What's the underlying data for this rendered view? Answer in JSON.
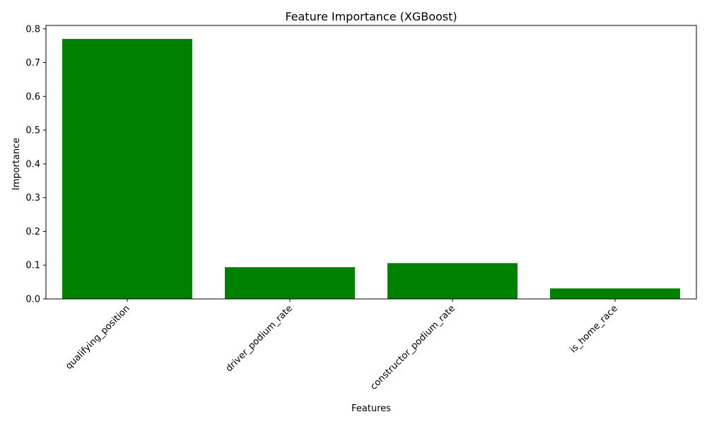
{
  "chart_data": {
    "type": "bar",
    "title": "Feature Importance (XGBoost)",
    "xlabel": "Features",
    "ylabel": "Importance",
    "categories": [
      "qualifying_position",
      "driver_podium_rate",
      "constructor_podium_rate",
      "is_home_race"
    ],
    "values": [
      0.77,
      0.094,
      0.106,
      0.031
    ],
    "ylim": [
      0,
      0.81
    ],
    "yticks": [
      "0.0",
      "0.1",
      "0.2",
      "0.3",
      "0.4",
      "0.5",
      "0.6",
      "0.7",
      "0.8"
    ],
    "grid": false,
    "bar_color": "#008000"
  }
}
